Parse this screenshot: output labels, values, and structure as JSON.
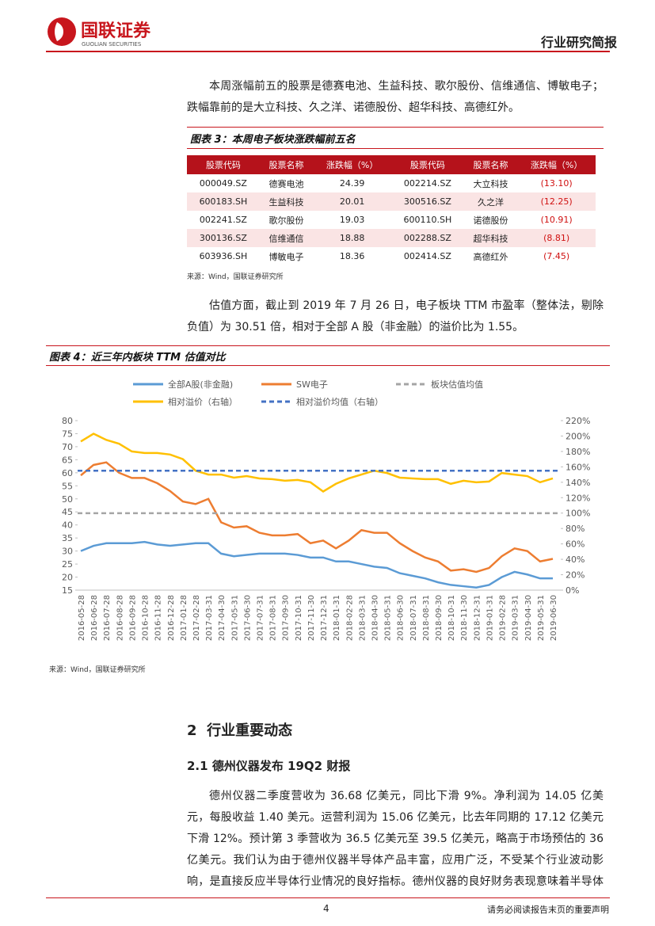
{
  "header": {
    "brand": "国联证券",
    "brand_en": "GUOLIAN SECURITIES",
    "report_type": "行业研究简报"
  },
  "paragraphs": [
    "本周涨幅前五的股票是德赛电池、生益科技、歌尔股份、信维通信、博敏电子；跌幅靠前的是大立科技、久之洋、诺德股份、超华科技、高德红外。",
    "估值方面，截止到 2019 年 7 月 26 日，电子板块 TTM 市盈率（整体法，剔除负值）为 30.51 倍，相对于全部 A 股（非金融）的溢价比为 1.55。"
  ],
  "table": {
    "title": "图表 3：本周电子板块涨跌幅前五名",
    "columns": [
      "股票代码",
      "股票名称",
      "涨跌幅（%）",
      "股票代码",
      "股票名称",
      "涨跌幅（%）"
    ],
    "rows": [
      [
        "000049.SZ",
        "德赛电池",
        "24.39",
        "002214.SZ",
        "大立科技",
        "(13.10)"
      ],
      [
        "600183.SH",
        "生益科技",
        "20.01",
        "300516.SZ",
        "久之洋",
        "(12.25)"
      ],
      [
        "002241.SZ",
        "歌尔股份",
        "19.03",
        "600110.SH",
        "诺德股份",
        "(10.91)"
      ],
      [
        "300136.SZ",
        "信维通信",
        "18.88",
        "002288.SZ",
        "超华科技",
        "(8.81)"
      ],
      [
        "603936.SH",
        "博敏电子",
        "18.36",
        "002414.SZ",
        "高德红外",
        "(7.45)"
      ]
    ],
    "source": "来源：Wind，国联证券研究所"
  },
  "chart_data": {
    "type": "line",
    "title": "图表 4：近三年内板块 TTM 估值对比",
    "source": "来源：Wind，国联证券研究所",
    "categories": [
      "2016-05-28",
      "2016-06-28",
      "2016-07-28",
      "2016-08-28",
      "2016-09-28",
      "2016-10-28",
      "2016-11-28",
      "2016-12-28",
      "2017-01-28",
      "2017-02-28",
      "2017-03-31",
      "2017-04-30",
      "2017-05-31",
      "2017-06-30",
      "2017-07-31",
      "2017-08-31",
      "2017-09-30",
      "2017-10-31",
      "2017-11-30",
      "2017-12-31",
      "2018-01-31",
      "2018-02-28",
      "2018-03-31",
      "2018-04-30",
      "2018-05-31",
      "2018-06-30",
      "2018-07-31",
      "2018-08-31",
      "2018-09-30",
      "2018-10-31",
      "2018-11-30",
      "2018-12-31",
      "2019-01-31",
      "2019-02-28",
      "2019-03-31",
      "2019-04-30",
      "2019-05-31",
      "2019-06-30"
    ],
    "series": [
      {
        "name": "全部A股(非金融)",
        "color": "#5b9bd5",
        "values": [
          30,
          32,
          33,
          33,
          33,
          33.5,
          32.5,
          32,
          32.5,
          33,
          33,
          29,
          28,
          28.5,
          29,
          29,
          29,
          28.5,
          27.5,
          27.5,
          26,
          26,
          25,
          24,
          23.5,
          21.5,
          20.5,
          19.5,
          18,
          17,
          16.5,
          16,
          17,
          20,
          22,
          21,
          19.5,
          19.5
        ]
      },
      {
        "name": "SW电子",
        "color": "#ed7d31",
        "values": [
          59,
          63,
          64,
          60,
          58,
          58,
          56,
          53,
          49,
          48,
          50,
          41,
          39,
          39.5,
          37,
          36,
          36,
          36.5,
          33,
          34,
          31,
          34,
          38,
          37,
          37,
          33,
          30,
          27.5,
          26,
          22.5,
          23,
          22,
          23.5,
          28,
          31,
          30,
          26,
          27
        ]
      },
      {
        "name": "板块估值均值",
        "color": "#a5a5a5",
        "dash": true,
        "level": 44.5
      },
      {
        "name": "相对溢价（右轴）",
        "color": "#ffc000",
        "axis": "y2",
        "values": [
          193,
          203,
          195,
          190,
          180,
          178,
          178,
          176,
          170,
          155,
          150,
          150,
          146,
          148,
          145,
          144,
          142,
          143,
          140,
          128,
          138,
          145,
          150,
          155,
          152,
          146,
          145,
          144,
          144,
          138,
          142,
          140,
          141,
          152,
          150,
          148,
          140,
          145
        ]
      },
      {
        "name": "相对溢价均值（右轴）",
        "color": "#4472c4",
        "dash": true,
        "axis": "y2",
        "level": 155
      }
    ],
    "ylim": [
      15,
      80
    ],
    "yticks": [
      15,
      20,
      25,
      30,
      35,
      40,
      45,
      50,
      55,
      60,
      65,
      70,
      75,
      80
    ],
    "y2lim": [
      0,
      220
    ],
    "y2ticks": [
      {
        "value": 0,
        "label": "0%"
      },
      {
        "value": 20,
        "label": "20%"
      },
      {
        "value": 40,
        "label": "40%"
      },
      {
        "value": 60,
        "label": "60%"
      },
      {
        "value": 80,
        "label": "80%"
      },
      {
        "value": 100,
        "label": "100%"
      },
      {
        "value": 120,
        "label": "120%"
      },
      {
        "value": 140,
        "label": "140%"
      },
      {
        "value": 160,
        "label": "160%"
      },
      {
        "value": 180,
        "label": "180%"
      },
      {
        "value": 200,
        "label": "200%"
      },
      {
        "value": 220,
        "label": "220%"
      }
    ],
    "grid": false
  },
  "section": {
    "number": "2",
    "title": "行业重要动态"
  },
  "subsection": {
    "number": "2.1",
    "title": "德州仪器发布 19Q2 财报"
  },
  "body": "德州仪器二季度营收为 36.68 亿美元，同比下滑 9%。净利润为 14.05 亿美元，每股收益 1.40 美元。运营利润为 15.06 亿美元，比去年同期的 17.12 亿美元下滑 12%。预计第 3 季营收为 36.5 亿美元至 39.5 亿美元，略高于市场预估的 36 亿美元。我们认为由于德州仪器半导体产品丰富，应用广泛，不受某个行业波动影响，是直接反应半导体行业情况的良好指标。德州仪器的良好财务表现意味着半导体等电子零组件的",
  "footer": {
    "page": "4",
    "notice": "请务必阅读报告末页的重要声明"
  }
}
